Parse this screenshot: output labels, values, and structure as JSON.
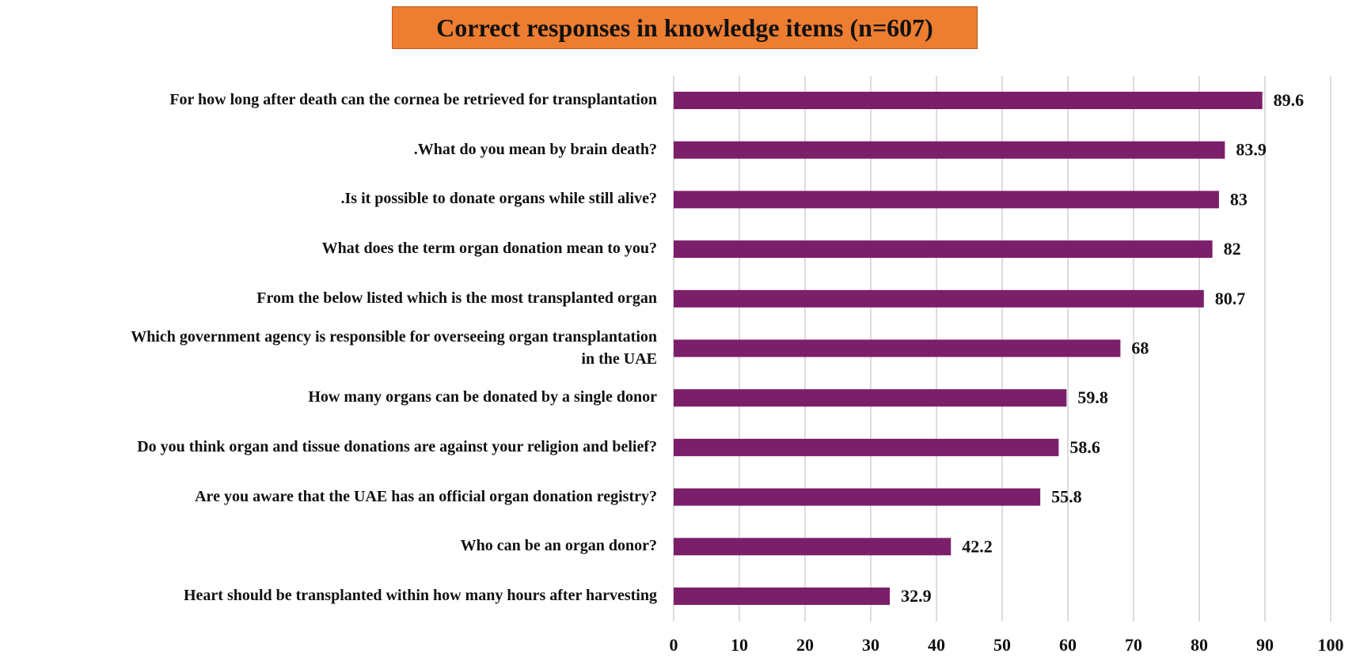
{
  "chart_data": {
    "type": "barh",
    "title": "Correct responses in knowledge items (n=607)",
    "categories": [
      "For how long after death can the cornea be retrieved for transplantation",
      ".What do you mean by brain death?",
      ".Is it possible to donate organs while still alive?",
      "What does the term organ donation mean to you?",
      "From the below listed which is the most transplanted organ",
      "Which government agency is responsible for overseeing organ transplantation\nin the UAE",
      "How many organs can be donated by a single donor",
      "Do you think organ and tissue donations are against your religion and belief?",
      "Are you aware that the UAE has an official organ donation registry?",
      "Who can be an organ donor?",
      "Heart should be transplanted within how many hours after harvesting"
    ],
    "values": [
      89.6,
      83.9,
      83,
      82,
      80.7,
      68,
      59.8,
      58.6,
      55.8,
      42.2,
      32.9
    ],
    "color": "#7b1f6b",
    "xlim": [
      0,
      100
    ],
    "xticks": [
      0,
      10,
      20,
      30,
      40,
      50,
      60,
      70,
      80,
      90,
      100
    ],
    "grid": true
  }
}
